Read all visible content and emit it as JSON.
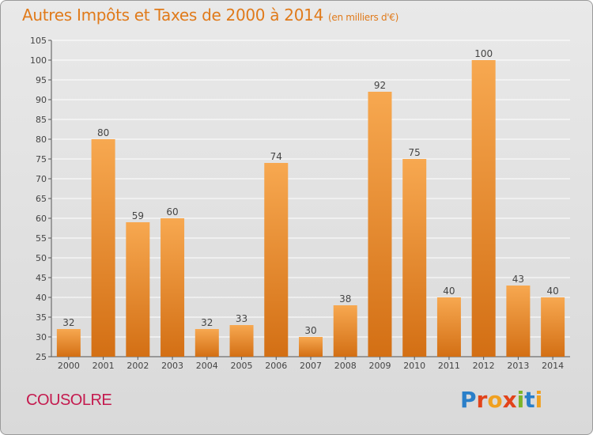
{
  "title": "Autres Impôts et Taxes de 2000 à 2014",
  "subtitle": "(en milliers d'€)",
  "commune": "COUSOLRE",
  "brand": {
    "text": "Proxiti",
    "letter_colors": [
      "#2a7fc9",
      "#e2431a",
      "#f0a020",
      "#e2431a",
      "#7bb428",
      "#2a7fc9",
      "#f0a020"
    ]
  },
  "colors": {
    "title": "#e07a1a",
    "commune": "#c41a4e",
    "bar_top": "#f7a850",
    "bar_bottom": "#d36f14",
    "grid": "#ffffff",
    "label": "#444444"
  },
  "chart_data": {
    "type": "bar",
    "categories": [
      "2000",
      "2001",
      "2002",
      "2003",
      "2004",
      "2005",
      "2006",
      "2007",
      "2008",
      "2009",
      "2010",
      "2011",
      "2012",
      "2013",
      "2014"
    ],
    "values": [
      32,
      80,
      59,
      60,
      32,
      33,
      74,
      30,
      38,
      92,
      75,
      40,
      100,
      43,
      40
    ],
    "title": "Autres Impôts et Taxes de 2000 à 2014",
    "subtitle": "(en milliers d'€)",
    "xlabel": "",
    "ylabel": "",
    "ylim": [
      25,
      105
    ],
    "yticks": [
      25,
      30,
      35,
      40,
      45,
      50,
      55,
      60,
      65,
      70,
      75,
      80,
      85,
      90,
      95,
      100,
      105
    ],
    "grid": true,
    "data_labels": true
  }
}
